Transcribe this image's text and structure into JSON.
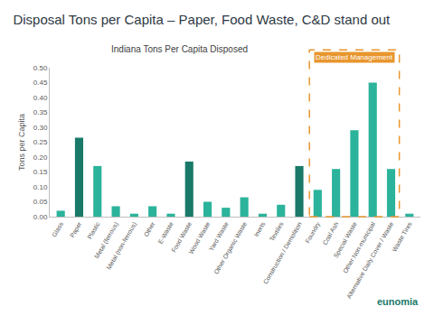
{
  "chart_data": {
    "type": "bar",
    "title": "Disposal Tons per Capita – Paper, Food Waste, C&D stand out",
    "subtitle": "Indiana Tons Per Capita Disposed",
    "y_label": "Tons per Capita",
    "categories": [
      "Glass",
      "Paper",
      "Plastic",
      "Metal (ferrous)",
      "Metal (non-ferrous)",
      "Other",
      "E-Waste",
      "Food Waste",
      "Wood Waste",
      "Yard Waste",
      "Other Organic Waste",
      "Inerts",
      "Textiles",
      "Construction / Demolition",
      "Foundry",
      "Coal Ash",
      "Special Waste",
      "Other Non-municipal",
      "Alternative Daily Cover / Waste",
      "Waste Tires"
    ],
    "values": [
      0.02,
      0.265,
      0.17,
      0.035,
      0.01,
      0.035,
      0.01,
      0.185,
      0.05,
      0.03,
      0.065,
      0.01,
      0.04,
      0.17,
      0.09,
      0.16,
      0.29,
      0.45,
      0.16,
      0.01
    ],
    "colors": [
      "#2bb39b",
      "#1a7a6a",
      "#2bb39b",
      "#2bb39b",
      "#2bb39b",
      "#2bb39b",
      "#2bb39b",
      "#1a7a6a",
      "#2bb39b",
      "#2bb39b",
      "#2bb39b",
      "#2bb39b",
      "#2bb39b",
      "#1a7a6a",
      "#2bb39b",
      "#2bb39b",
      "#2bb39b",
      "#2bb39b",
      "#2bb39b",
      "#2bb39b"
    ],
    "ylim": [
      0,
      0.5
    ],
    "yticks": [
      {
        "value": 0,
        "label": "0.00"
      },
      {
        "value": 0.05,
        "label": "0.05"
      },
      {
        "value": 0.1,
        "label": "0.10"
      },
      {
        "value": 0.15,
        "label": "0.15"
      },
      {
        "value": 0.2,
        "label": "0.20"
      },
      {
        "value": 0.25,
        "label": "0.25"
      },
      {
        "value": 0.3,
        "label": "0.30"
      },
      {
        "value": 0.35,
        "label": "0.35"
      },
      {
        "value": 0.4,
        "label": "0.40"
      },
      {
        "value": 0.45,
        "label": "0.45"
      },
      {
        "value": 0.5,
        "label": "0.50"
      }
    ],
    "annotations": [
      "Dedicated Management",
      "eunomia"
    ],
    "grid": false
  }
}
